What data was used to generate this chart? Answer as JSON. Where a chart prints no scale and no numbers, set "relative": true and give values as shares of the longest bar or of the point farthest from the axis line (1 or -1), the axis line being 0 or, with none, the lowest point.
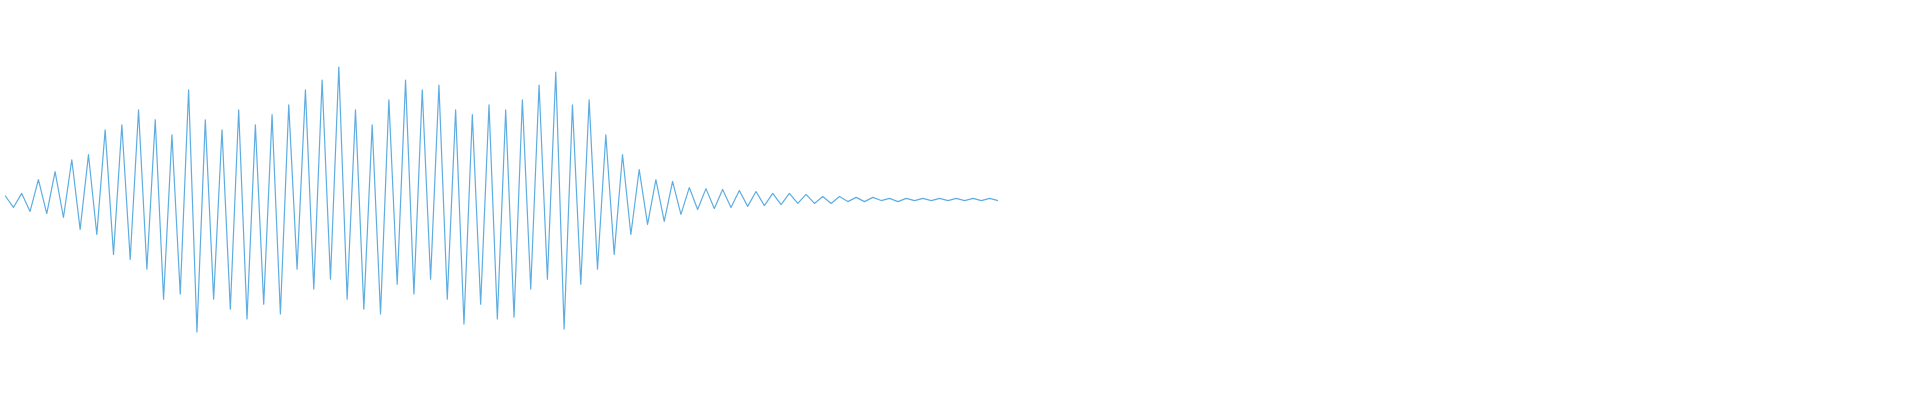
{
  "chart_data": {
    "type": "line",
    "relative": true,
    "color": "#5dade2",
    "categories": [
      null,
      null,
      null,
      null,
      null,
      null,
      null,
      null,
      null,
      null,
      null,
      null,
      null,
      null,
      null,
      null,
      null,
      null,
      null,
      null,
      null,
      null,
      null,
      null,
      null,
      null,
      null,
      null,
      null,
      null,
      null,
      null,
      null,
      null,
      null,
      null,
      null,
      null,
      null,
      null,
      null,
      null,
      null,
      null,
      null,
      null,
      null,
      null,
      null,
      null,
      null,
      null,
      null,
      null,
      null,
      null,
      null,
      null,
      null,
      null,
      null,
      null,
      null,
      null,
      null,
      null,
      null,
      null,
      null,
      null,
      null,
      null,
      null,
      null,
      null,
      null,
      null,
      null,
      null,
      null,
      null,
      null,
      null,
      null,
      null,
      null,
      null,
      null,
      null,
      null,
      null,
      null,
      null,
      null,
      null,
      null,
      null,
      null,
      null,
      null,
      null,
      null,
      null,
      null,
      null,
      null,
      null,
      null,
      null,
      null,
      null,
      null,
      null,
      null,
      null,
      null,
      null,
      null,
      null,
      null
    ],
    "values": [
      0.515,
      0.47,
      0.523,
      0.455,
      0.575,
      0.447,
      0.605,
      0.432,
      0.65,
      0.387,
      0.669,
      0.368,
      0.763,
      0.293,
      0.782,
      0.274,
      0.838,
      0.237,
      0.801,
      0.124,
      0.744,
      0.143,
      0.914,
      0.0,
      0.801,
      0.124,
      0.763,
      0.086,
      0.838,
      0.049,
      0.782,
      0.105,
      0.82,
      0.068,
      0.857,
      0.237,
      0.914,
      0.162,
      0.951,
      0.199,
      1.0,
      0.124,
      0.838,
      0.086,
      0.782,
      0.068,
      0.876,
      0.18,
      0.951,
      0.143,
      0.914,
      0.199,
      0.932,
      0.124,
      0.838,
      0.03,
      0.82,
      0.105,
      0.857,
      0.049,
      0.838,
      0.056,
      0.876,
      0.162,
      0.932,
      0.199,
      0.981,
      0.011,
      0.857,
      0.18,
      0.876,
      0.237,
      0.744,
      0.293,
      0.669,
      0.368,
      0.613,
      0.406,
      0.575,
      0.417,
      0.568,
      0.444,
      0.545,
      0.462,
      0.541,
      0.466,
      0.538,
      0.47,
      0.534,
      0.474,
      0.53,
      0.477,
      0.523,
      0.481,
      0.523,
      0.485,
      0.519,
      0.485,
      0.511,
      0.485,
      0.511,
      0.492,
      0.508,
      0.492,
      0.508,
      0.496,
      0.504,
      0.492,
      0.504,
      0.496,
      0.504,
      0.496,
      0.504,
      0.496,
      0.504,
      0.496,
      0.504,
      0.496,
      0.504,
      0.496
    ]
  }
}
